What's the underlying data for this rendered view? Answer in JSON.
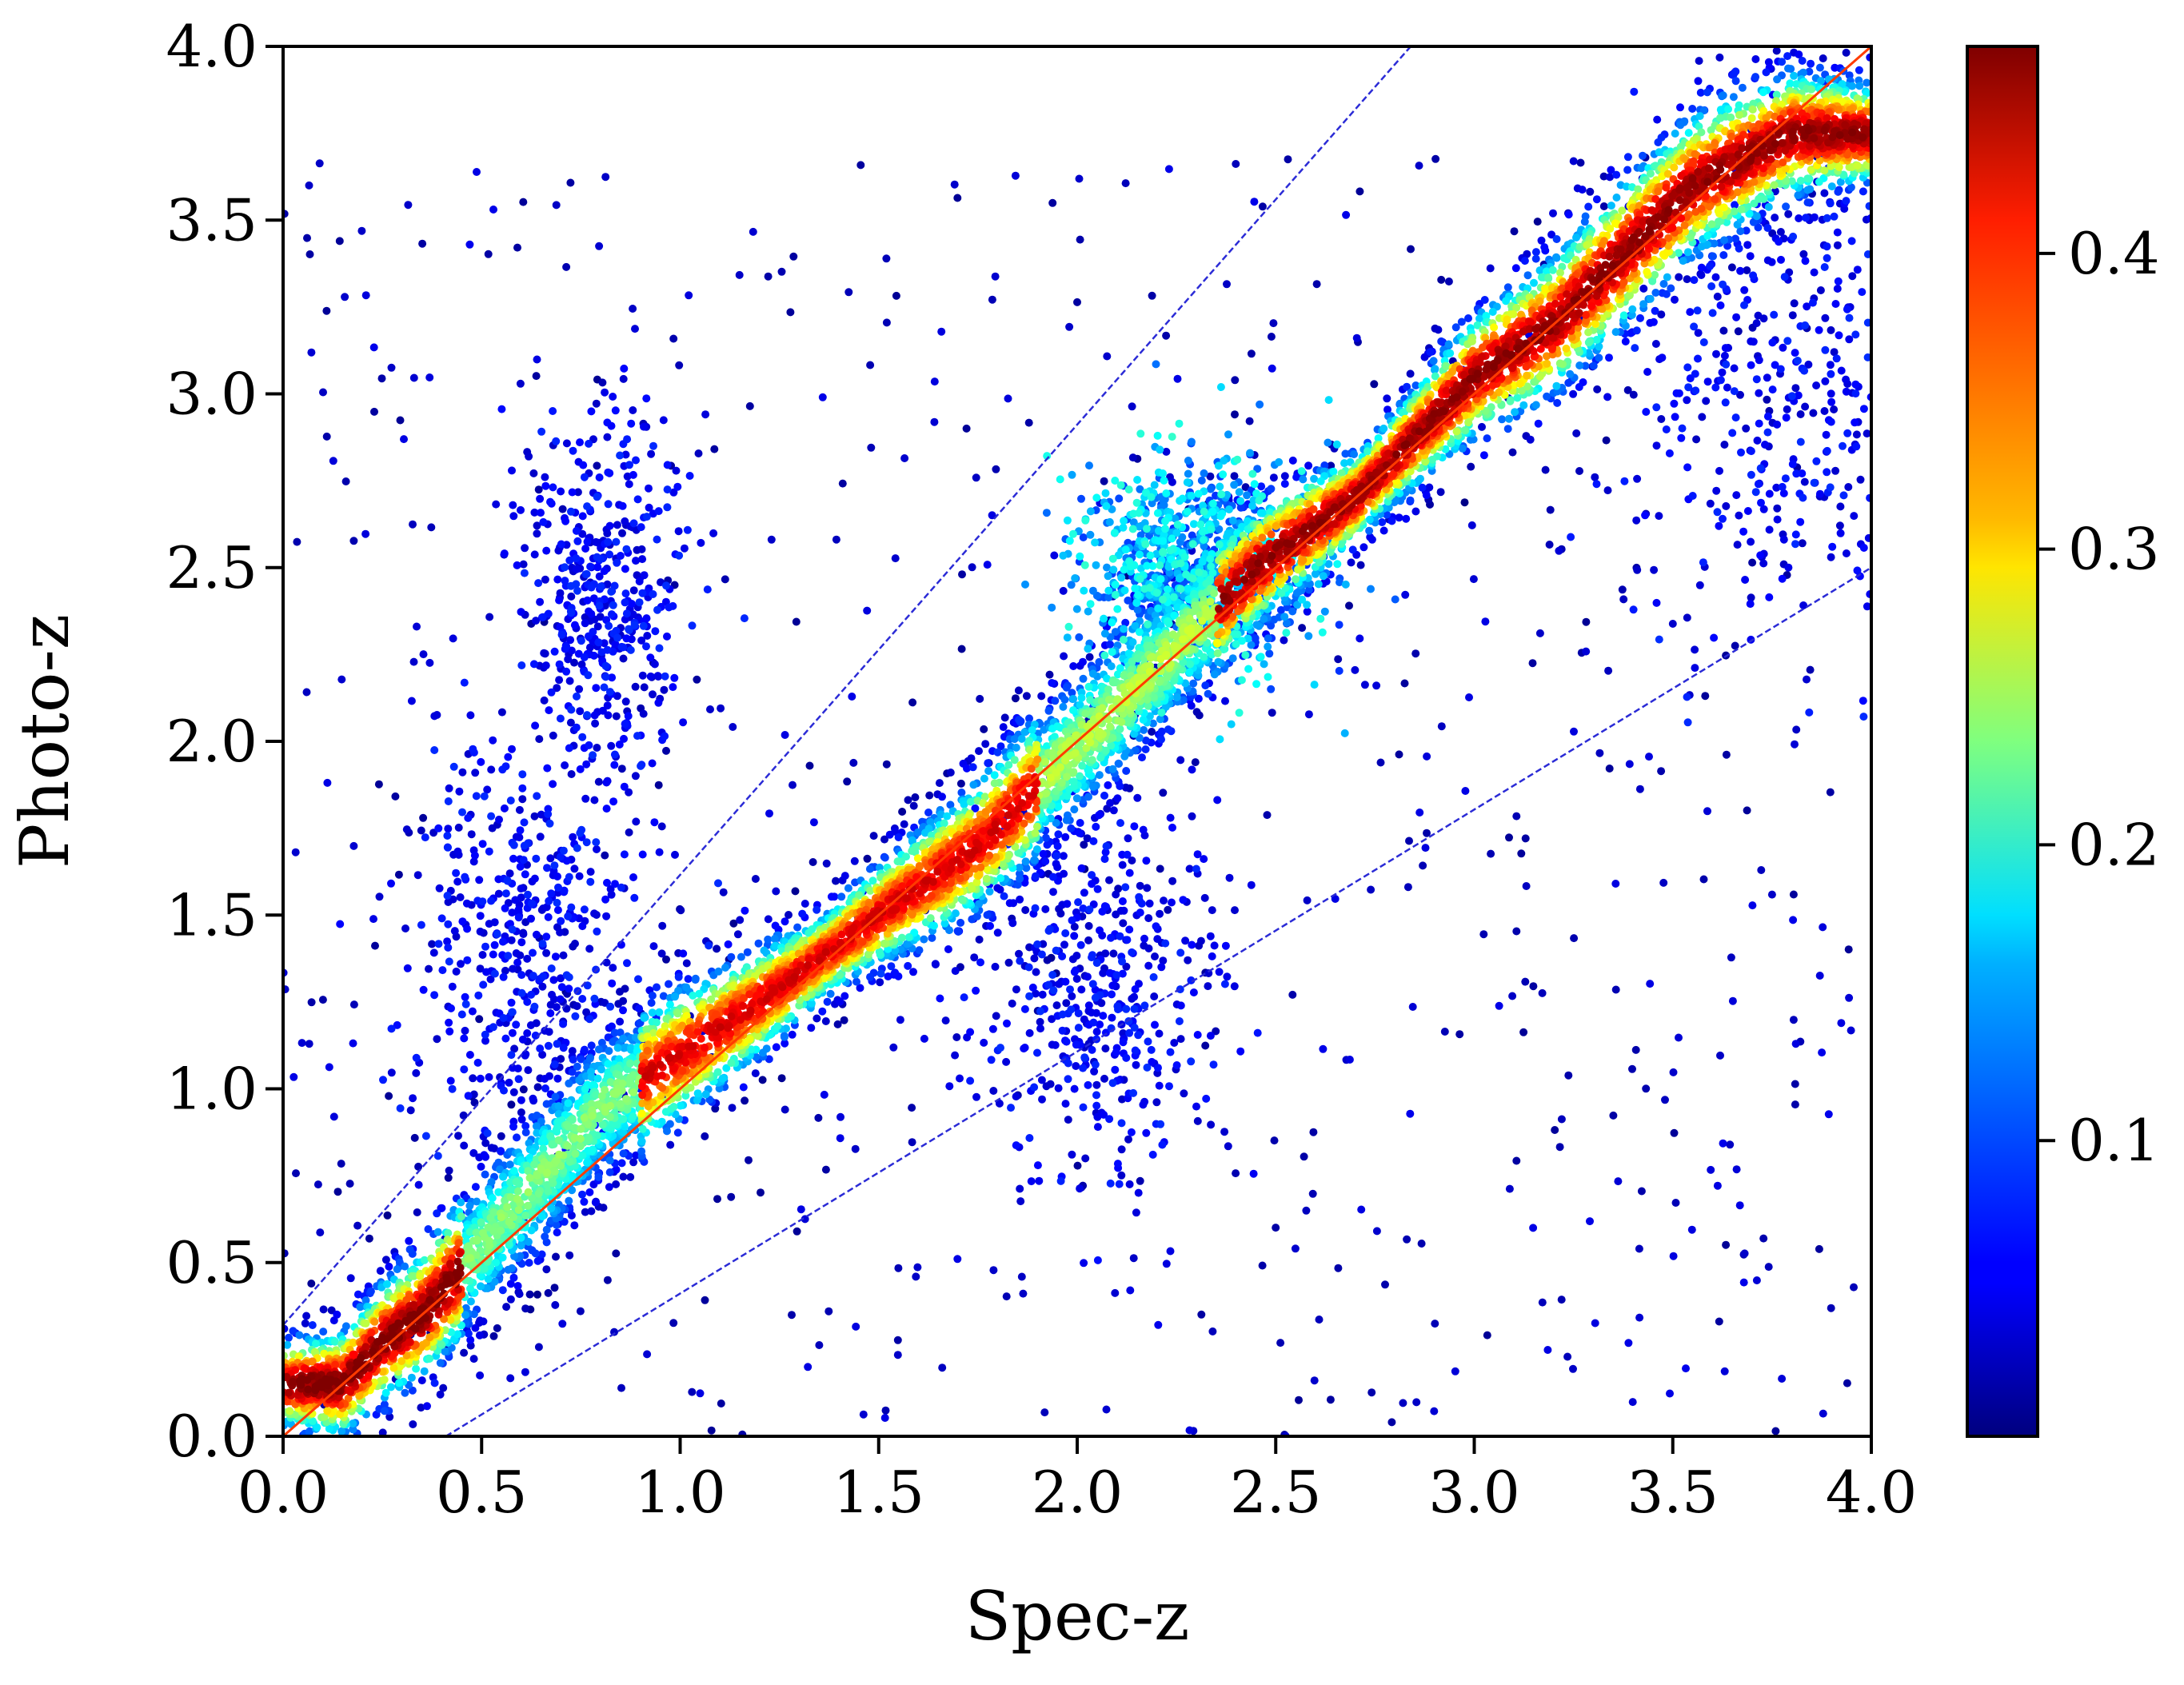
{
  "chart_data": {
    "type": "scatter",
    "title": "",
    "xlabel": "Spec-z",
    "ylabel": "Photo-z",
    "xlim": [
      0.0,
      4.0
    ],
    "ylim": [
      0.0,
      4.0
    ],
    "xticks": [
      "0.0",
      "0.5",
      "1.0",
      "1.5",
      "2.0",
      "2.5",
      "3.0",
      "3.5",
      "4.0"
    ],
    "yticks": [
      "0.0",
      "0.5",
      "1.0",
      "1.5",
      "2.0",
      "2.5",
      "3.0",
      "3.5",
      "4.0"
    ],
    "grid": false,
    "legend": "none",
    "colormap": "jet",
    "color_scale": {
      "min": 0.0,
      "max": 0.47,
      "ticks": [
        "0.1",
        "0.2",
        "0.3",
        "0.4"
      ]
    },
    "reference_lines": [
      {
        "kind": "identity",
        "points": [
          [
            0.0,
            0.0
          ],
          [
            4.0,
            4.0
          ]
        ],
        "color": "#ff3b00",
        "style": "solid"
      },
      {
        "kind": "upper-outlier-bound",
        "points": [
          [
            0.0,
            0.32
          ],
          [
            2.84,
            4.0
          ]
        ],
        "color": "#2b2bd6",
        "style": "dashed"
      },
      {
        "kind": "lower-outlier-bound",
        "points": [
          [
            0.41,
            0.0
          ],
          [
            4.0,
            2.5
          ]
        ],
        "color": "#2b2bd6",
        "style": "dashed"
      }
    ],
    "series": [
      {
        "density_ridge": [
          [
            0.15,
            0.15
          ],
          [
            0.25,
            0.27
          ],
          [
            0.35,
            0.35
          ],
          [
            0.8,
            0.95
          ],
          [
            1.2,
            1.25
          ],
          [
            1.5,
            1.5
          ],
          [
            1.75,
            1.7
          ],
          [
            2.45,
            2.5
          ],
          [
            2.7,
            2.7
          ],
          [
            3.0,
            3.05
          ],
          [
            3.2,
            3.2
          ],
          [
            3.55,
            3.6
          ],
          [
            3.8,
            3.75
          ]
        ],
        "off_diagonal_clusters": [
          {
            "center": [
              0.6,
              1.45
            ],
            "spread": [
              0.15,
              0.3
            ],
            "density": "low"
          },
          {
            "center": [
              0.8,
              2.4
            ],
            "spread": [
              0.1,
              0.25
            ],
            "density": "low"
          },
          {
            "center": [
              2.05,
              1.3
            ],
            "spread": [
              0.15,
              0.25
            ],
            "density": "low"
          },
          {
            "center": [
              2.3,
              2.5
            ],
            "spread": [
              0.15,
              0.15
            ],
            "density": "medium"
          },
          {
            "center": [
              3.8,
              3.1
            ],
            "spread": [
              0.2,
              0.4
            ],
            "density": "low"
          }
        ]
      }
    ]
  }
}
